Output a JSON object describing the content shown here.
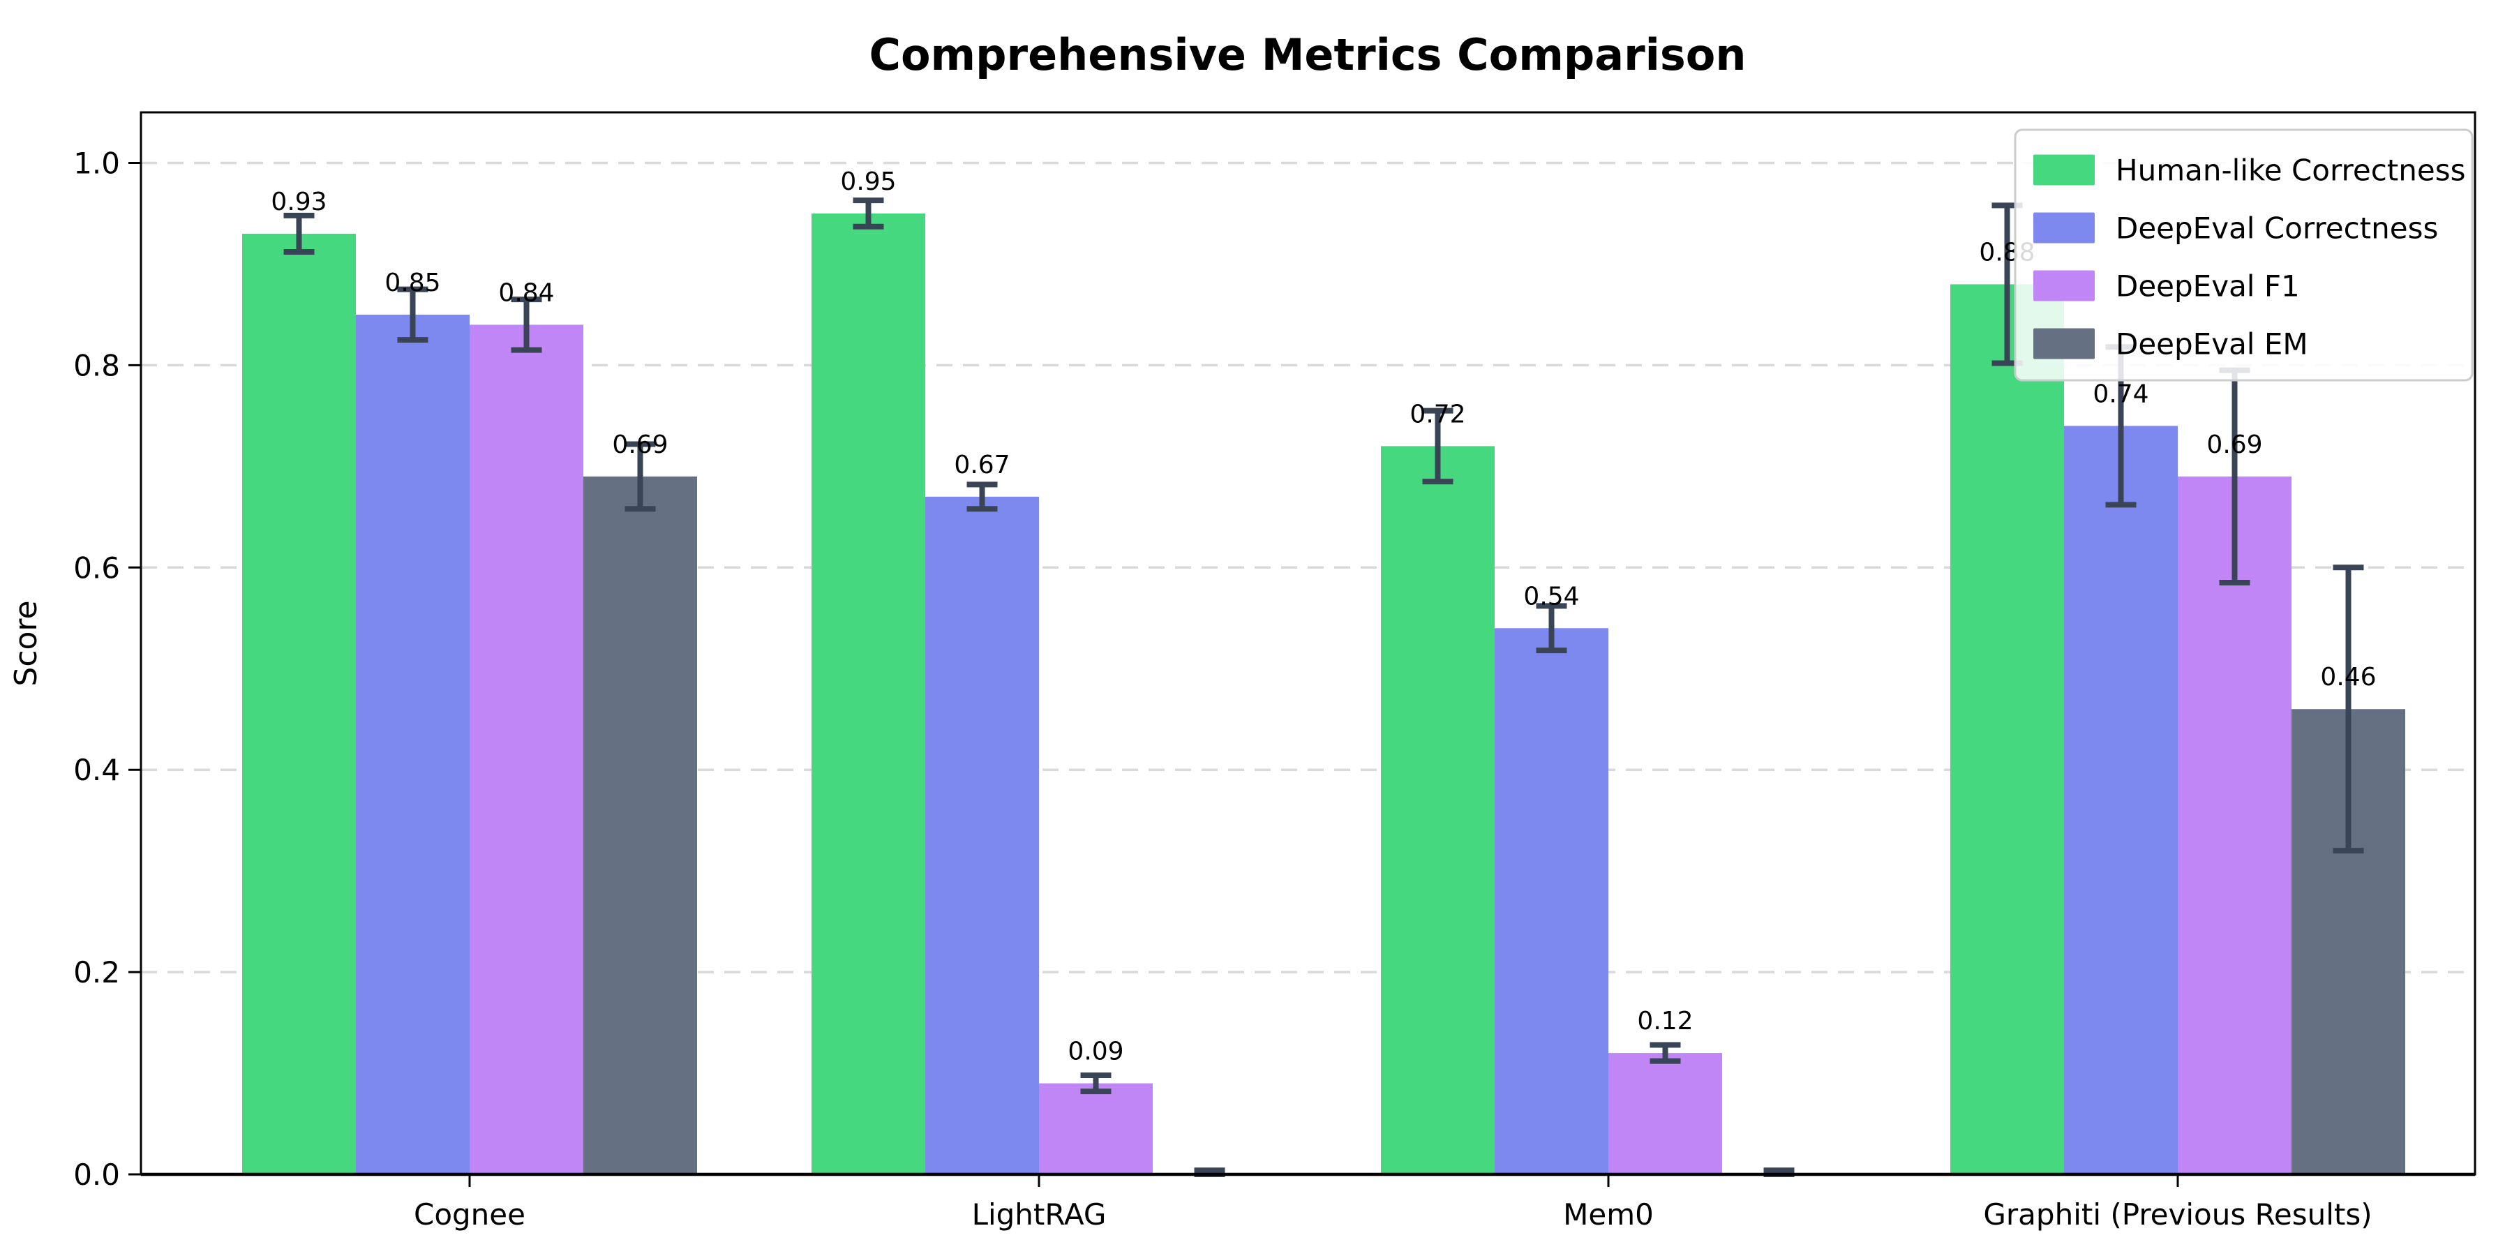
{
  "page": {
    "background": "#ffffff"
  },
  "chart_data": {
    "type": "bar",
    "title": "Comprehensive Metrics Comparison",
    "xlabel": "",
    "ylabel": "Score",
    "categories": [
      "Cognee",
      "LightRAG",
      "Mem0",
      "Graphiti (Previous Results)"
    ],
    "series": [
      {
        "name": "Human-like Correctness",
        "color": "#46d87f",
        "values": [
          0.93,
          0.95,
          0.72,
          0.88
        ],
        "errors": [
          0.018,
          0.013,
          0.035,
          0.078
        ],
        "labels": [
          "0.93",
          "0.95",
          "0.72",
          "0.88"
        ]
      },
      {
        "name": "DeepEval Correctness",
        "color": "#7e89f0",
        "values": [
          0.85,
          0.67,
          0.54,
          0.74
        ],
        "errors": [
          0.025,
          0.012,
          0.022,
          0.078
        ],
        "labels": [
          "0.85",
          "0.67",
          "0.54",
          "0.74"
        ]
      },
      {
        "name": "DeepEval F1",
        "color": "#c186f5",
        "values": [
          0.84,
          0.09,
          0.12,
          0.69
        ],
        "errors": [
          0.025,
          0.008,
          0.008,
          0.105
        ],
        "labels": [
          "0.84",
          "0.09",
          "0.12",
          "0.69"
        ]
      },
      {
        "name": "DeepEval EM",
        "color": "#667083",
        "values": [
          0.69,
          0.0,
          0.0,
          0.46
        ],
        "errors": [
          0.032,
          0.004,
          0.004,
          0.14
        ],
        "labels": [
          "0.69",
          "",
          "",
          "0.46"
        ]
      }
    ],
    "yticks": [
      {
        "label": "0.0",
        "value": 0.0
      },
      {
        "label": "0.2",
        "value": 0.2
      },
      {
        "label": "0.4",
        "value": 0.4
      },
      {
        "label": "0.6",
        "value": 0.6
      },
      {
        "label": "0.8",
        "value": 0.8
      },
      {
        "label": "1.0",
        "value": 1.0
      }
    ],
    "ylim": [
      0,
      1.05
    ],
    "grid": {
      "on": true,
      "axis": "y",
      "style": "dashed",
      "color": "#d9d9d9"
    },
    "legend": {
      "position": "upper right"
    },
    "error_bar_color": "#394456",
    "axis_color": "#000000"
  }
}
